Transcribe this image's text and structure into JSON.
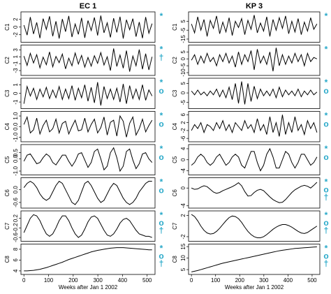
{
  "chart_data": [
    {
      "type": "line",
      "title": "EC 1",
      "xlabel": "Weeks after Jan 1 2002",
      "x": [
        0,
        13,
        26,
        39,
        52,
        65,
        78,
        91,
        104,
        117,
        130,
        143,
        156,
        169,
        182,
        195,
        208,
        221,
        234,
        247,
        260,
        273,
        286,
        299,
        312,
        325,
        338,
        351,
        364,
        377,
        390,
        403,
        416,
        429,
        442,
        455,
        468,
        481,
        494,
        507,
        520
      ],
      "xlim": [
        -12,
        532
      ],
      "xticks": [
        0,
        100,
        200,
        300,
        400,
        500
      ],
      "panels": [
        {
          "ylabel": "C1",
          "ylim": [
            -3.6,
            3.6
          ],
          "yticks": [
            -2,
            0,
            2
          ],
          "markers": [
            "*"
          ],
          "values": [
            0.5,
            -2.1,
            2.6,
            -1.8,
            1.2,
            -2.9,
            2.2,
            -0.6,
            2.8,
            -2.4,
            1.5,
            -3,
            2.1,
            -1.2,
            2.9,
            -2.6,
            0.8,
            -1.9,
            2.4,
            -2.8,
            1.7,
            -0.9,
            2.5,
            -2.2,
            3,
            -1.5,
            1.1,
            -2.7,
            2.3,
            -1.4,
            2.7,
            -3,
            1.9,
            -0.7,
            2.2,
            -2.5,
            1.3,
            -2.9,
            2.6,
            -1.6,
            0.9
          ]
        },
        {
          "ylabel": "C2",
          "ylim": [
            -4,
            4
          ],
          "yticks": [
            -3,
            -1,
            1,
            3
          ],
          "markers": [
            "*",
            "†"
          ],
          "values": [
            1.2,
            -1.5,
            2.0,
            -0.8,
            1.6,
            -2.2,
            0.9,
            -1.3,
            2.4,
            -1.9,
            1.1,
            -0.7,
            1.8,
            -2.5,
            0.6,
            -1.6,
            2.1,
            -1.1,
            1.4,
            -2.0,
            0.8,
            -1.7,
            1.3,
            -0.9,
            2.2,
            -1.4,
            1.0,
            -3.0,
            3.4,
            -1.8,
            1.5,
            -2.3,
            2.8,
            -3.3,
            1.2,
            -1.6,
            3.1,
            -2.6,
            1.9,
            -2.8,
            1.0
          ]
        },
        {
          "ylabel": "C3",
          "ylim": [
            -1.6,
            1.6
          ],
          "yticks": [
            -1,
            0,
            1
          ],
          "markers": [
            "*",
            "o"
          ],
          "values": [
            -1.2,
            0.8,
            -0.3,
            0.6,
            -0.7,
            0.5,
            -0.4,
            0.7,
            -0.6,
            0.4,
            -0.5,
            0.8,
            -0.7,
            0.5,
            -0.6,
            0.9,
            -0.8,
            0.6,
            -0.5,
            1.0,
            -0.9,
            0.7,
            -1.1,
            1.3,
            -1.4,
            0.8,
            -0.6,
            0.5,
            -0.7,
            0.6,
            -1.0,
            1.1,
            -1.2,
            0.9,
            -0.6,
            0.5,
            -0.7,
            1.0,
            -0.8,
            0.4,
            -0.3
          ]
        },
        {
          "ylabel": "C4",
          "ylim": [
            -1.3,
            1.3
          ],
          "yticks": [
            {
              "value": -1,
              "label": "-1.0"
            },
            {
              "value": 0,
              "label": "0.0"
            },
            {
              "value": 1,
              "label": "1.0"
            }
          ],
          "markers": [
            "*",
            "o"
          ],
          "values": [
            0.2,
            0.9,
            -0.6,
            -0.3,
            0.8,
            -0.7,
            0.1,
            0.6,
            -0.5,
            -0.2,
            0.7,
            -0.6,
            0.3,
            0.5,
            -0.7,
            0.0,
            0.6,
            -0.4,
            -0.3,
            0.8,
            -0.5,
            0.2,
            0.7,
            -0.6,
            -0.1,
            0.9,
            -0.8,
            0.4,
            0.6,
            -0.9,
            1.0,
            0.5,
            -1.0,
            0.3,
            0.9,
            -0.8,
            -0.2,
            0.7,
            -0.5,
            0.1,
            0.6
          ]
        },
        {
          "ylabel": "C5",
          "ylim": [
            -1.2,
            1.05
          ],
          "yticks": [
            {
              "value": -1,
              "label": "-1.0"
            },
            {
              "value": 0,
              "label": "0.0"
            },
            0.5
          ],
          "markers": [
            "*",
            "o"
          ],
          "values": [
            -0.2,
            0.3,
            0.4,
            0.0,
            -0.4,
            -0.3,
            0.1,
            0.4,
            0.2,
            -0.3,
            -0.5,
            -0.1,
            0.3,
            0.3,
            -0.2,
            -0.6,
            -0.2,
            0.4,
            0.5,
            -0.1,
            -0.7,
            -0.3,
            0.6,
            0.8,
            0.0,
            -0.9,
            -0.6,
            0.5,
            0.9,
            0.1,
            -1.0,
            -0.6,
            0.6,
            0.8,
            -0.1,
            -0.8,
            -0.4,
            0.4,
            0.5,
            0.0,
            -0.3
          ]
        },
        {
          "ylabel": "C6",
          "ylim": [
            -0.8,
            0.5
          ],
          "yticks": [
            -0.6,
            {
              "value": 0,
              "label": "0.0"
            }
          ],
          "markers": [
            "*",
            "o"
          ],
          "values": [
            0.1,
            0.3,
            0.4,
            0.3,
            0.1,
            -0.2,
            -0.4,
            -0.5,
            -0.4,
            -0.1,
            0.2,
            0.4,
            0.3,
            0.0,
            -0.3,
            -0.6,
            -0.7,
            -0.5,
            -0.1,
            0.3,
            0.4,
            0.2,
            -0.1,
            -0.4,
            -0.6,
            -0.5,
            -0.2,
            0.1,
            0.3,
            0.2,
            -0.1,
            -0.4,
            -0.6,
            -0.7,
            -0.6,
            -0.4,
            -0.1,
            0.1,
            0.3,
            0.4,
            0.4
          ]
        },
        {
          "ylabel": "C7",
          "ylim": [
            -0.7,
            0.45
          ],
          "yticks": [
            -0.6,
            -0.2,
            0.2
          ],
          "markers": [
            "*",
            "o",
            "†"
          ],
          "values": [
            -0.4,
            -0.1,
            0.2,
            0.35,
            0.3,
            0.1,
            -0.2,
            -0.45,
            -0.55,
            -0.45,
            -0.2,
            0.1,
            0.3,
            0.3,
            0.1,
            -0.2,
            -0.45,
            -0.6,
            -0.5,
            -0.25,
            0.05,
            0.25,
            0.3,
            0.2,
            -0.05,
            -0.3,
            -0.5,
            -0.55,
            -0.45,
            -0.25,
            0.0,
            0.15,
            0.2,
            0.1,
            -0.1,
            -0.3,
            -0.45,
            -0.5,
            -0.55,
            -0.55,
            -0.6
          ]
        },
        {
          "ylabel": "C8",
          "ylim": [
            3.6,
            8.7
          ],
          "yticks": [
            4,
            6,
            8
          ],
          "markers": [
            "*",
            "o",
            "†"
          ],
          "values": [
            4.0,
            4.0,
            4.05,
            4.1,
            4.2,
            4.3,
            4.45,
            4.6,
            4.8,
            5.0,
            5.2,
            5.4,
            5.6,
            5.85,
            6.1,
            6.3,
            6.5,
            6.7,
            6.9,
            7.1,
            7.3,
            7.5,
            7.65,
            7.8,
            7.9,
            8.0,
            8.1,
            8.2,
            8.25,
            8.3,
            8.3,
            8.3,
            8.25,
            8.2,
            8.15,
            8.1,
            8.05,
            8.0,
            7.95,
            7.9,
            7.9
          ]
        }
      ]
    },
    {
      "type": "line",
      "title": "KP 3",
      "xlabel": "Weeks after Jan 1 2002",
      "x": [
        0,
        13,
        26,
        39,
        52,
        65,
        78,
        91,
        104,
        117,
        130,
        143,
        156,
        169,
        182,
        195,
        208,
        221,
        234,
        247,
        260,
        273,
        286,
        299,
        312,
        325,
        338,
        351,
        364,
        377,
        390,
        403,
        416,
        429,
        442,
        455,
        468,
        481,
        494,
        507,
        520
      ],
      "xlim": [
        -12,
        532
      ],
      "xticks": [
        0,
        100,
        200,
        300,
        400,
        500
      ],
      "panels": [
        {
          "ylabel": "C1",
          "ylim": [
            -17,
            14
          ],
          "yticks": [
            -15,
            -5,
            5
          ],
          "markers": [
            "*"
          ],
          "values": [
            2,
            -8,
            10,
            -5,
            7,
            -12,
            6,
            -3,
            11,
            -9,
            4,
            -7,
            9,
            -11,
            5,
            -2,
            8,
            -10,
            6,
            -4,
            12,
            -8,
            3,
            -6,
            10,
            -12,
            7,
            -5,
            9,
            -3,
            11,
            -9,
            5,
            -7,
            8,
            -10,
            4,
            -6,
            9,
            -4,
            2
          ]
        },
        {
          "ylabel": "C2",
          "ylim": [
            -11,
            9
          ],
          "yticks": [
            -10,
            -5,
            0,
            5
          ],
          "markers": [
            "*"
          ],
          "values": [
            -1,
            3,
            -4,
            2,
            -3,
            4,
            -2,
            1,
            -5,
            3,
            -2,
            4,
            -3,
            2,
            -6,
            5,
            -4,
            3,
            -2,
            6,
            -8,
            7,
            -3,
            2,
            -4,
            5,
            -9,
            8,
            -5,
            3,
            -4,
            2,
            -3,
            4,
            -2,
            3,
            -5,
            4,
            -2,
            1,
            0
          ]
        },
        {
          "ylabel": "C3",
          "ylim": [
            -7.5,
            7
          ],
          "yticks": [
            -5,
            0,
            5
          ],
          "markers": [
            "*",
            "o"
          ],
          "values": [
            1,
            -1,
            1.5,
            -1,
            0.5,
            -1.5,
            1,
            -1,
            2,
            -2,
            1.5,
            -2.5,
            3,
            -3.5,
            5,
            -5.5,
            6,
            -6,
            5,
            -4.5,
            3.5,
            -3,
            2,
            -1.5,
            1,
            -1.5,
            2,
            -2.5,
            3,
            -2,
            1.5,
            -1,
            1,
            -1.5,
            2,
            -2,
            1,
            -1,
            1.5,
            -1,
            0.5
          ]
        },
        {
          "ylabel": "C4",
          "ylim": [
            -7,
            7
          ],
          "yticks": [
            -6,
            -2,
            2,
            6
          ],
          "markers": [
            "*",
            "o"
          ],
          "values": [
            -2,
            1,
            -1,
            2,
            -3,
            1,
            0,
            -2,
            2,
            -1,
            3,
            -2,
            1,
            -3,
            2,
            0,
            -2,
            3,
            -1,
            1,
            -3,
            4,
            -2,
            1,
            -4,
            5,
            -3,
            2,
            -5,
            6,
            -4,
            2,
            -3,
            5,
            -2,
            1,
            -4,
            3,
            -1,
            2,
            -3
          ]
        },
        {
          "ylabel": "C5",
          "ylim": [
            -5,
            5
          ],
          "yticks": [
            -4,
            0,
            4
          ],
          "markers": [
            "*",
            "o"
          ],
          "values": [
            -2,
            -1,
            1,
            2,
            1,
            -1,
            -2,
            -1,
            1,
            2,
            0,
            -2,
            -1,
            1,
            2,
            1,
            -2,
            -3,
            0,
            3,
            3,
            -1,
            -4,
            -2,
            2,
            4,
            1,
            -3,
            -3,
            0,
            3,
            2,
            -1,
            -3,
            -1,
            2,
            2,
            0,
            -2,
            -1,
            1
          ]
        },
        {
          "ylabel": "C6",
          "ylim": [
            -4.2,
            2
          ],
          "yticks": [
            -4,
            0
          ],
          "markers": [
            "*",
            "o",
            "†"
          ],
          "values": [
            0,
            -0.3,
            -0.2,
            0.2,
            0.5,
            0.3,
            -0.3,
            -0.9,
            -1.2,
            -1.0,
            -0.6,
            -0.3,
            0,
            0.3,
            0.7,
            1.2,
            0.5,
            -0.8,
            -1.8,
            -1.7,
            -1.0,
            -0.5,
            -0.3,
            -0.6,
            -1.3,
            -2.0,
            -2.6,
            -3.0,
            -3.3,
            -3.2,
            -2.6,
            -1.8,
            -1.0,
            -0.4,
            0.0,
            0.4,
            0.6,
            0.4,
            0.0,
            0.6,
            1.3
          ]
        },
        {
          "ylabel": "C7",
          "ylim": [
            -2.6,
            2.6
          ],
          "yticks": [
            -2,
            2
          ],
          "markers": [
            "*",
            "o",
            "†"
          ],
          "values": [
            2.2,
            1.8,
            1.0,
            0.0,
            -0.8,
            -1.3,
            -1.5,
            -1.4,
            -1.0,
            -0.4,
            0.3,
            1.0,
            1.6,
            1.9,
            1.8,
            1.4,
            0.7,
            -0.2,
            -1.0,
            -1.6,
            -2.0,
            -2.2,
            -2.2,
            -2.0,
            -1.6,
            -1.1,
            -0.6,
            -0.2,
            0.1,
            0.3,
            0.3,
            0.1,
            -0.2,
            -0.6,
            -1.0,
            -1.3,
            -1.4,
            -1.2,
            -0.8,
            -0.4,
            0.0
          ]
        },
        {
          "ylabel": "C8",
          "ylim": [
            3.5,
            15.5
          ],
          "yticks": [
            5,
            10,
            15
          ],
          "markers": [
            "*",
            "o",
            "†"
          ],
          "values": [
            4,
            4.3,
            4.6,
            5,
            5.4,
            5.8,
            6.2,
            6.6,
            7,
            7.4,
            7.8,
            8.1,
            8.4,
            8.7,
            9,
            9.3,
            9.6,
            9.9,
            10.2,
            10.5,
            10.8,
            11.1,
            11.4,
            11.7,
            12,
            12.3,
            12.6,
            12.9,
            13.2,
            13.4,
            13.6,
            13.8,
            14,
            14.2,
            14.3,
            14.4,
            14.5,
            14.6,
            14.7,
            14.8,
            14.9
          ]
        }
      ]
    }
  ]
}
